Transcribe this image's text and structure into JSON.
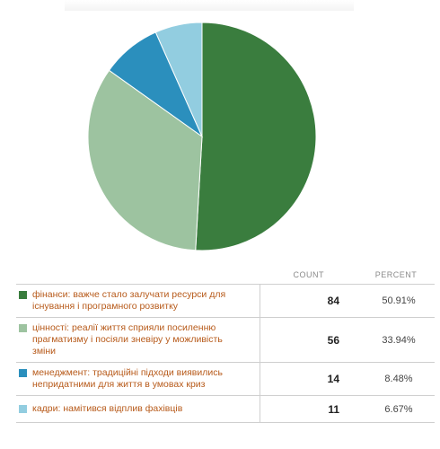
{
  "chart_data": {
    "type": "pie",
    "title": "",
    "slices": [
      {
        "label": "фінанси: важче стало залучати ресурси для існування і програмного розвитку",
        "count": 84,
        "percent": "50.91%",
        "color": "#3a7d3e"
      },
      {
        "label": "цінності: реалії життя сприяли посиленню прагматизму і посіяли зневіру у можливість зміни",
        "count": 56,
        "percent": "33.94%",
        "color": "#9dc3a0"
      },
      {
        "label": "менеджмент: традиційні підходи виявились непридатними для життя в умовах криз",
        "count": 14,
        "percent": "8.48%",
        "color": "#2b8fbd"
      },
      {
        "label": "кадри: намітився відплив фахівців",
        "count": 11,
        "percent": "6.67%",
        "color": "#92cde0"
      }
    ]
  },
  "table": {
    "col_count": "COUNT",
    "col_percent": "PERCENT"
  }
}
